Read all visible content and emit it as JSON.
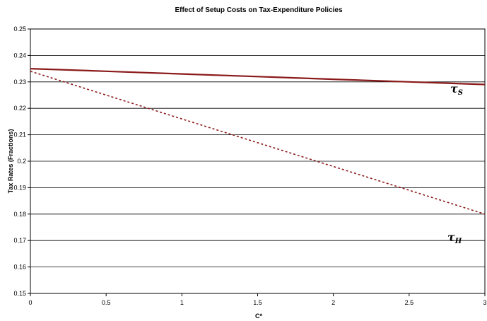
{
  "chart_data": {
    "type": "line",
    "title": "Effect of Setup Costs on Tax-Expenditure Policies",
    "xlabel": "C*",
    "ylabel": "Tax Rates (Fractions)",
    "xlim": [
      0,
      3
    ],
    "ylim": [
      0.15,
      0.25
    ],
    "x_ticks": [
      "0",
      "0.5",
      "1",
      "1.5",
      "2",
      "2.5",
      "3"
    ],
    "y_ticks": [
      "0.15",
      "0.16",
      "0.17",
      "0.18",
      "0.19",
      "0.2",
      "0.21",
      "0.22",
      "0.23",
      "0.24",
      "0.25"
    ],
    "grid": true,
    "series": [
      {
        "label_main": "τ",
        "label_sub": "S",
        "style": "solid",
        "color": "#8b1a1a",
        "x": [
          0,
          0.5,
          1,
          1.5,
          2,
          2.5,
          3
        ],
        "y": [
          0.235,
          0.234,
          0.233,
          0.232,
          0.231,
          0.23,
          0.229
        ]
      },
      {
        "label_main": "τ",
        "label_sub": "H",
        "style": "dashed",
        "color": "#8b1a1a",
        "x": [
          0,
          0.5,
          1,
          1.5,
          2,
          2.5,
          3
        ],
        "y": [
          0.234,
          0.225,
          0.216,
          0.207,
          0.198,
          0.189,
          0.18
        ]
      }
    ]
  }
}
